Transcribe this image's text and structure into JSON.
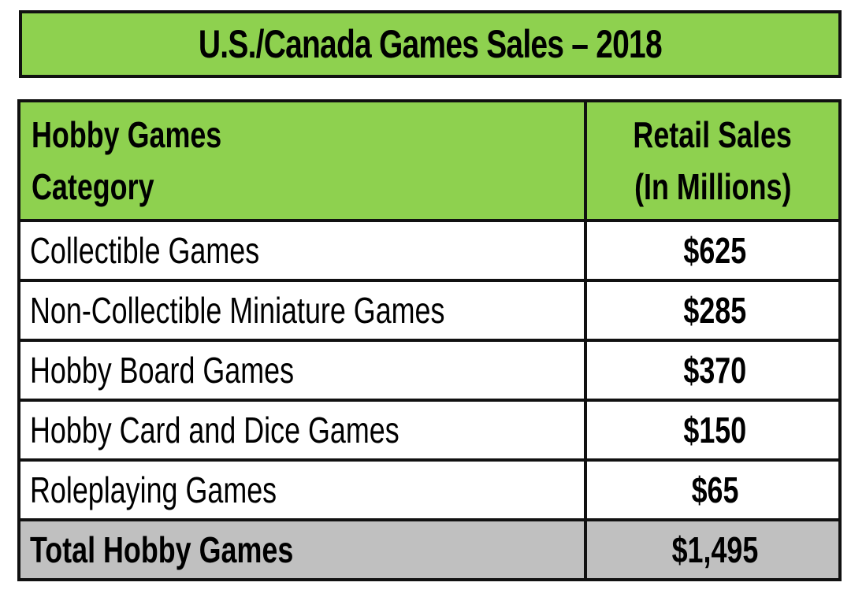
{
  "chart_data": {
    "type": "table",
    "title": "U.S./Canada Games Sales – 2018",
    "columns": [
      [
        "Hobby Games",
        "Category"
      ],
      [
        "Retail Sales",
        "(In Millions)"
      ]
    ],
    "rows": [
      {
        "category": "Collectible Games",
        "value": "$625"
      },
      {
        "category": "Non-Collectible Miniature Games",
        "value": "$285"
      },
      {
        "category": "Hobby Board Games",
        "value": "$370"
      },
      {
        "category": "Hobby Card and Dice Games",
        "value": "$150"
      },
      {
        "category": "Roleplaying Games",
        "value": "$65"
      }
    ],
    "total": {
      "category": "Total Hobby Games",
      "value": "$1,495"
    }
  },
  "colors": {
    "header_green": "#8ed14f",
    "total_gray": "#c0c0c0",
    "border": "#111111"
  }
}
